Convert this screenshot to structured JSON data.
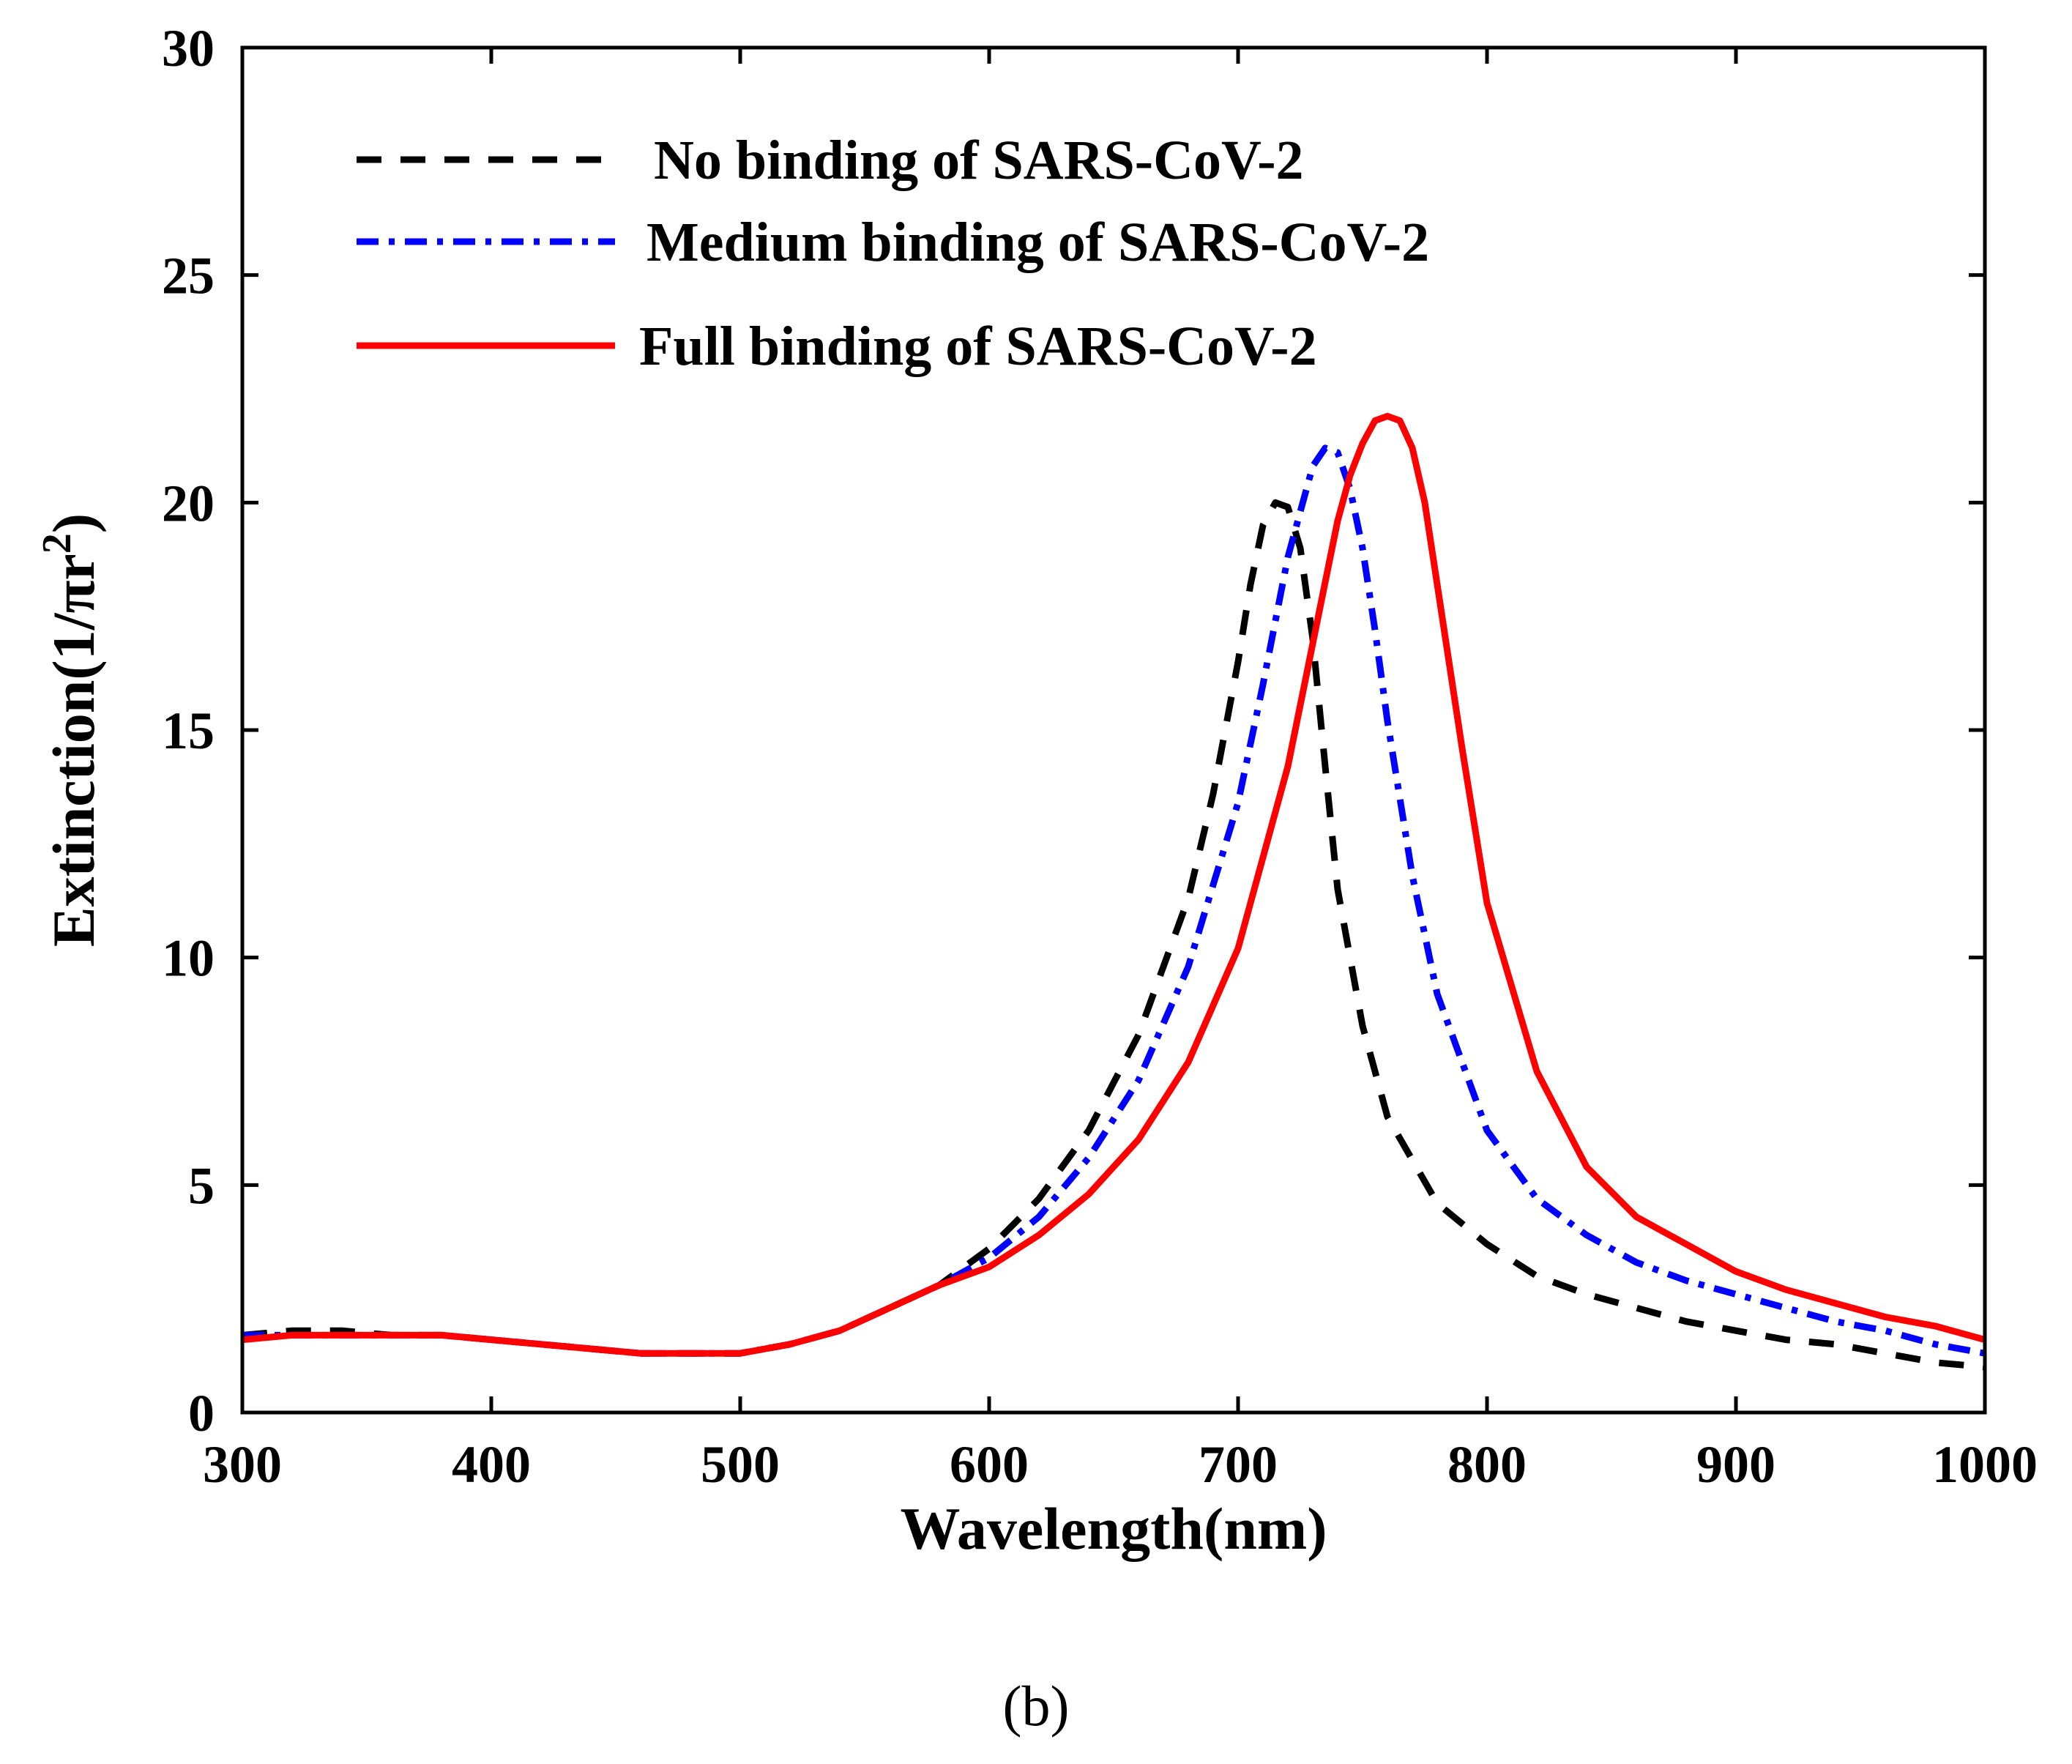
{
  "panel_label": "(b)",
  "chart_data": {
    "type": "line",
    "xlabel": "Wavelength(nm)",
    "ylabel_parts": {
      "main": "Extinction(1/πr",
      "sup": "2",
      "close": ")"
    },
    "xlim": [
      300,
      1000
    ],
    "ylim": [
      0,
      30
    ],
    "xticks": [
      300,
      400,
      500,
      600,
      700,
      800,
      900,
      1000
    ],
    "yticks": [
      0,
      5,
      10,
      15,
      20,
      25,
      30
    ],
    "legend_position": "top-left",
    "series": [
      {
        "name": "No binding of SARS-CoV-2",
        "color": "#000000",
        "style": "dashed",
        "x": [
          300,
          320,
          340,
          360,
          380,
          400,
          420,
          440,
          460,
          480,
          500,
          520,
          540,
          560,
          580,
          600,
          620,
          640,
          660,
          680,
          690,
          700,
          705,
          710,
          715,
          720,
          725,
          730,
          735,
          740,
          750,
          760,
          780,
          800,
          820,
          840,
          860,
          880,
          900,
          920,
          940,
          960,
          980,
          1000
        ],
        "y": [
          1.7,
          1.8,
          1.8,
          1.7,
          1.7,
          1.6,
          1.5,
          1.4,
          1.3,
          1.3,
          1.3,
          1.5,
          1.8,
          2.3,
          2.8,
          3.6,
          4.7,
          6.2,
          8.3,
          11.3,
          13.6,
          16.5,
          18.2,
          19.5,
          20.0,
          19.9,
          19.0,
          17.0,
          14.2,
          11.5,
          8.5,
          6.5,
          4.6,
          3.7,
          3.0,
          2.6,
          2.3,
          2.0,
          1.8,
          1.6,
          1.5,
          1.3,
          1.1,
          1.0
        ]
      },
      {
        "name": "Medium binding of SARS-CoV-2",
        "color": "#0000ff",
        "style": "dashdot",
        "x": [
          300,
          320,
          340,
          360,
          380,
          400,
          420,
          440,
          460,
          480,
          500,
          520,
          540,
          560,
          580,
          600,
          620,
          640,
          660,
          680,
          700,
          710,
          720,
          730,
          735,
          740,
          745,
          750,
          755,
          760,
          770,
          780,
          800,
          820,
          840,
          860,
          880,
          900,
          920,
          940,
          960,
          980,
          1000
        ],
        "y": [
          1.7,
          1.7,
          1.7,
          1.7,
          1.7,
          1.6,
          1.5,
          1.4,
          1.3,
          1.3,
          1.3,
          1.5,
          1.8,
          2.3,
          2.8,
          3.4,
          4.3,
          5.6,
          7.3,
          9.8,
          13.4,
          16.0,
          18.8,
          20.8,
          21.2,
          21.1,
          20.3,
          19.0,
          17.2,
          15.2,
          11.8,
          9.2,
          6.2,
          4.7,
          3.9,
          3.3,
          2.9,
          2.6,
          2.3,
          2.0,
          1.8,
          1.5,
          1.3
        ]
      },
      {
        "name": "Full binding of SARS-CoV-2",
        "color": "#ff0000",
        "style": "solid",
        "x": [
          300,
          320,
          340,
          360,
          380,
          400,
          420,
          440,
          460,
          480,
          500,
          520,
          540,
          560,
          580,
          600,
          620,
          640,
          660,
          680,
          700,
          720,
          730,
          740,
          745,
          750,
          755,
          760,
          765,
          770,
          775,
          780,
          790,
          800,
          820,
          840,
          860,
          880,
          900,
          920,
          940,
          960,
          980,
          1000
        ],
        "y": [
          1.6,
          1.7,
          1.7,
          1.7,
          1.7,
          1.6,
          1.5,
          1.4,
          1.3,
          1.3,
          1.3,
          1.5,
          1.8,
          2.3,
          2.8,
          3.2,
          3.9,
          4.8,
          6.0,
          7.7,
          10.2,
          14.2,
          16.9,
          19.6,
          20.6,
          21.3,
          21.8,
          21.9,
          21.8,
          21.2,
          20.0,
          18.2,
          14.6,
          11.2,
          7.5,
          5.4,
          4.3,
          3.7,
          3.1,
          2.7,
          2.4,
          2.1,
          1.9,
          1.6
        ]
      }
    ]
  }
}
